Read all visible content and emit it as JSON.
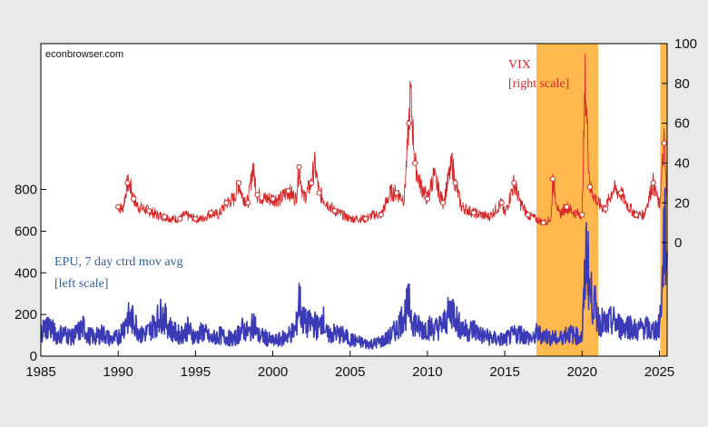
{
  "chart_data": {
    "type": "line",
    "title": "",
    "source_label": "econbrowser.com",
    "colors": {
      "vix": "#d62728",
      "epu": "#3b3bb8",
      "shade": "#ffb84d",
      "frame": "#000000"
    },
    "x_axis": {
      "range": [
        1985,
        2025.5
      ],
      "ticks": [
        "1985",
        "1990",
        "1995",
        "2000",
        "2005",
        "2010",
        "2015",
        "2020",
        "2025"
      ]
    },
    "left_axis": {
      "range": [
        0,
        1500
      ],
      "ticks": [
        "0",
        "200",
        "400",
        "600",
        "800"
      ]
    },
    "right_axis": {
      "range": [
        -57,
        100
      ],
      "ticks": [
        "0",
        "20",
        "40",
        "60",
        "80",
        "100"
      ]
    },
    "shaded_periods": [
      [
        2017.05,
        2021.05
      ],
      [
        2025.05,
        2025.5
      ]
    ],
    "series": [
      {
        "key": "vix",
        "axis": "right",
        "name": "VIX",
        "legend_note": "[right scale]",
        "x": [
          1990.0,
          1990.3,
          1990.6,
          1990.8,
          1991.0,
          1991.3,
          1992.0,
          1992.5,
          1993.0,
          1993.5,
          1994.0,
          1994.3,
          1995.0,
          1995.5,
          1996.0,
          1996.5,
          1997.0,
          1997.5,
          1997.8,
          1998.0,
          1998.4,
          1998.7,
          1999.0,
          1999.5,
          2000.0,
          2000.5,
          2001.0,
          2001.5,
          2001.7,
          2002.0,
          2002.5,
          2002.7,
          2003.0,
          2003.5,
          2004.0,
          2005.0,
          2006.0,
          2006.5,
          2007.0,
          2007.6,
          2008.0,
          2008.5,
          2008.8,
          2008.9,
          2009.2,
          2009.5,
          2010.0,
          2010.4,
          2011.0,
          2011.6,
          2011.8,
          2012.2,
          2013.0,
          2014.0,
          2014.8,
          2015.0,
          2015.6,
          2016.0,
          2016.5,
          2017.0,
          2017.5,
          2018.0,
          2018.1,
          2018.5,
          2019.0,
          2019.5,
          2020.0,
          2020.2,
          2020.5,
          2021.0,
          2021.5,
          2022.0,
          2022.5,
          2023.0,
          2023.5,
          2024.0,
          2024.6,
          2025.0,
          2025.3,
          2025.5
        ],
        "values": [
          18,
          17,
          30,
          28,
          22,
          18,
          16,
          14,
          13,
          12,
          12,
          14,
          12,
          12,
          15,
          14,
          20,
          22,
          30,
          24,
          20,
          38,
          24,
          22,
          22,
          22,
          26,
          22,
          38,
          22,
          30,
          40,
          25,
          20,
          16,
          12,
          12,
          14,
          14,
          25,
          25,
          22,
          60,
          75,
          40,
          30,
          22,
          34,
          20,
          40,
          30,
          18,
          15,
          13,
          20,
          14,
          30,
          20,
          14,
          12,
          10,
          12,
          32,
          14,
          18,
          15,
          14,
          82,
          28,
          20,
          17,
          27,
          25,
          18,
          14,
          14,
          30,
          18,
          50,
          20
        ]
      },
      {
        "key": "epu",
        "axis": "left",
        "name": "EPU, 7 day ctrd mov avg",
        "legend_note": "[left scale]",
        "x": [
          1985.0,
          1985.5,
          1986.0,
          1986.5,
          1987.0,
          1987.8,
          1988.0,
          1988.5,
          1989.0,
          1989.5,
          1990.0,
          1990.6,
          1991.0,
          1991.5,
          1992.0,
          1992.4,
          1992.8,
          1993.0,
          1993.5,
          1994.0,
          1994.5,
          1995.0,
          1995.5,
          1996.0,
          1996.5,
          1997.0,
          1997.5,
          1998.0,
          1998.5,
          1998.8,
          1999.0,
          1999.5,
          2000.0,
          2000.5,
          2001.0,
          2001.5,
          2001.7,
          2001.9,
          2002.2,
          2002.6,
          2003.0,
          2003.2,
          2003.5,
          2004.0,
          2004.5,
          2005.0,
          2005.5,
          2006.0,
          2006.5,
          2007.0,
          2007.5,
          2008.0,
          2008.5,
          2008.8,
          2009.0,
          2009.5,
          2010.0,
          2010.5,
          2011.0,
          2011.6,
          2011.8,
          2012.0,
          2012.5,
          2013.0,
          2013.5,
          2014.0,
          2014.5,
          2015.0,
          2015.5,
          2016.0,
          2016.5,
          2016.9,
          2017.0,
          2017.5,
          2018.0,
          2018.5,
          2019.0,
          2019.5,
          2020.0,
          2020.2,
          2020.3,
          2020.5,
          2020.8,
          2021.0,
          2021.5,
          2022.0,
          2022.5,
          2023.0,
          2023.5,
          2024.0,
          2024.5,
          2025.0,
          2025.2,
          2025.3,
          2025.5
        ],
        "values": [
          120,
          150,
          100,
          110,
          90,
          140,
          100,
          90,
          110,
          80,
          90,
          180,
          170,
          100,
          120,
          160,
          200,
          180,
          120,
          100,
          130,
          90,
          120,
          80,
          100,
          90,
          80,
          130,
          110,
          170,
          100,
          90,
          70,
          80,
          100,
          130,
          280,
          180,
          150,
          160,
          130,
          190,
          100,
          110,
          100,
          80,
          70,
          60,
          60,
          70,
          90,
          130,
          200,
          250,
          180,
          130,
          140,
          130,
          150,
          230,
          200,
          150,
          120,
          130,
          100,
          90,
          80,
          80,
          100,
          110,
          90,
          80,
          110,
          100,
          90,
          80,
          110,
          100,
          90,
          400,
          550,
          300,
          250,
          180,
          150,
          170,
          140,
          150,
          120,
          140,
          120,
          140,
          350,
          600,
          500
        ]
      }
    ]
  }
}
